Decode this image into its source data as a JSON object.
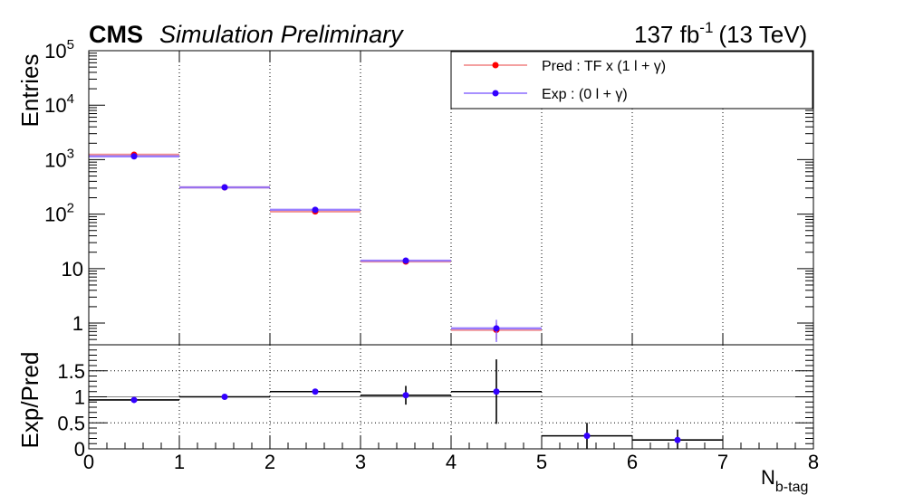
{
  "header": {
    "experiment": "CMS",
    "label": "Simulation Preliminary",
    "lumi_value": "137 fb",
    "lumi_exp": "-1",
    "energy": "(13 TeV)"
  },
  "chart_data": [
    {
      "type": "line",
      "name": "main-panel",
      "ylabel": "Entries",
      "yscale": "log",
      "ylim": [
        0.4,
        100000
      ],
      "xlim": [
        0,
        8
      ],
      "grid": "vertical",
      "legend_position": "top-right",
      "y_ticks": [
        {
          "value": 1,
          "base": "1",
          "exp": ""
        },
        {
          "value": 10,
          "base": "10",
          "exp": ""
        },
        {
          "value": 100,
          "base": "10",
          "exp": "2"
        },
        {
          "value": 1000,
          "base": "10",
          "exp": "3"
        },
        {
          "value": 10000,
          "base": "10",
          "exp": "4"
        },
        {
          "value": 100000,
          "base": "10",
          "exp": "5"
        }
      ],
      "series": [
        {
          "name": "Pred : TF x (1 l + γ)",
          "color": "#ff0000",
          "line_color": "#f08080",
          "x": [
            0.5,
            1.5,
            2.5,
            3.5,
            4.5
          ],
          "y": [
            1230,
            310,
            112,
            13.5,
            0.75
          ],
          "yerr": [
            30,
            10,
            5,
            0.8,
            0.25
          ]
        },
        {
          "name": "Exp : (0 l + γ)",
          "color": "#3300ff",
          "line_color": "#8a6cff",
          "x": [
            0.5,
            1.5,
            2.5,
            3.5,
            4.5
          ],
          "y": [
            1150,
            310,
            120,
            14,
            0.8
          ],
          "yerr": [
            25,
            10,
            6,
            1.0,
            0.35
          ]
        }
      ]
    },
    {
      "type": "scatter",
      "name": "ratio-panel",
      "ylabel": "Exp/Pred",
      "xlabel_base": "N",
      "xlabel_sub": "b-tag",
      "xlim": [
        0,
        8
      ],
      "ylim": [
        0,
        2
      ],
      "y_ticks": [
        "0",
        "0.5",
        "1",
        "1.5"
      ],
      "x_ticks": [
        "0",
        "1",
        "2",
        "3",
        "4",
        "5",
        "6",
        "7",
        "8"
      ],
      "reference_line": 1,
      "points": [
        {
          "x": 0.5,
          "y": 0.94,
          "yerr": 0.03
        },
        {
          "x": 1.5,
          "y": 1.0,
          "yerr": 0.03
        },
        {
          "x": 2.5,
          "y": 1.1,
          "yerr": 0.04
        },
        {
          "x": 3.5,
          "y": 1.03,
          "yerr": 0.18
        },
        {
          "x": 4.5,
          "y": 1.1,
          "yerr": 0.62
        },
        {
          "x": 5.5,
          "y": 0.25,
          "yerr": 0.25
        },
        {
          "x": 6.5,
          "y": 0.17,
          "yerr": 0.2
        }
      ],
      "point_color": "#3300ff"
    }
  ]
}
